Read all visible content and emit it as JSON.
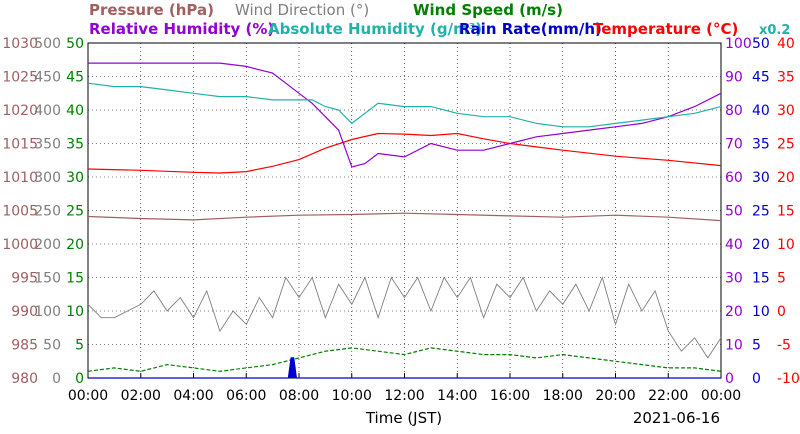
{
  "chart_data": {
    "type": "line",
    "legend": {
      "row1": [
        {
          "text": "Pressure (hPa)",
          "color": "#a0605f"
        },
        {
          "text": "Wind Direction (°)",
          "color": "#7f7f7f"
        },
        {
          "text": "Wind Speed (m/s)",
          "color": "#008000"
        }
      ],
      "row2": [
        {
          "text": "Relative Humidity (%)",
          "color": "#9400d3"
        },
        {
          "text": "Absolute Humidity (g/m³)",
          "color": "#20b2aa"
        },
        {
          "text": "Rain Rate(mm/h)",
          "color": "#0000cd"
        },
        {
          "text": "Temperature (°C)",
          "color": "#ff0000"
        },
        {
          "text": "x0.2",
          "color": "#20b2aa"
        }
      ]
    },
    "xlabel": "Time (JST)",
    "date": "2021-06-16",
    "x_ticks": [
      "00:00",
      "02:00",
      "04:00",
      "06:00",
      "08:00",
      "10:00",
      "12:00",
      "14:00",
      "16:00",
      "18:00",
      "20:00",
      "22:00",
      "00:00"
    ],
    "axes": {
      "pressure": {
        "color": "#a0605f",
        "ticks": [
          "1030",
          "1025",
          "1020",
          "1015",
          "1010",
          "1005",
          "1000",
          "995",
          "990",
          "985",
          "980"
        ],
        "ylim": [
          980,
          1030
        ]
      },
      "wind_direction": {
        "color": "#7f7f7f",
        "ticks": [
          "500",
          "450",
          "400",
          "350",
          "300",
          "250",
          "200",
          "150",
          "100",
          "50",
          "0"
        ],
        "ylim": [
          0,
          500
        ]
      },
      "wind_speed": {
        "color": "#008000",
        "ticks": [
          "50",
          "45",
          "40",
          "35",
          "30",
          "25",
          "20",
          "15",
          "10",
          "5",
          "0"
        ],
        "ylim": [
          0,
          50
        ]
      },
      "humidity": {
        "color": "#9400d3",
        "ticks": [
          "100",
          "90",
          "80",
          "70",
          "60",
          "50",
          "40",
          "30",
          "20",
          "10",
          "0"
        ],
        "ylim": [
          0,
          100
        ]
      },
      "rain": {
        "color": "#0000cd",
        "ticks": [
          "50",
          "45",
          "40",
          "35",
          "30",
          "25",
          "20",
          "15",
          "10",
          "5",
          "0"
        ],
        "ylim": [
          0,
          50
        ]
      },
      "temperature": {
        "color": "#ff0000",
        "ticks": [
          "40",
          "35",
          "30",
          "25",
          "20",
          "15",
          "10",
          "5",
          "0",
          "-5",
          "-10"
        ],
        "ylim": [
          -10,
          40
        ]
      }
    },
    "series": [
      {
        "name": "Pressure (hPa)",
        "axis": "pressure",
        "color": "#a0605f",
        "x": [
          0,
          2,
          4,
          6,
          8,
          10,
          12,
          14,
          16,
          18,
          20,
          22,
          24
        ],
        "y": [
          1004.1,
          1003.8,
          1003.6,
          1004.0,
          1004.3,
          1004.4,
          1004.6,
          1004.4,
          1004.2,
          1004.0,
          1004.3,
          1004.0,
          1003.5
        ]
      },
      {
        "name": "Temperature (°C)",
        "axis": "temperature",
        "color": "#ff0000",
        "x": [
          0,
          2,
          4,
          5,
          6,
          7,
          8,
          9,
          10,
          11,
          12,
          13,
          14,
          15,
          16,
          17,
          18,
          20,
          22,
          24
        ],
        "y": [
          21.2,
          21.0,
          20.7,
          20.6,
          20.8,
          21.6,
          22.6,
          24.3,
          25.6,
          26.5,
          26.4,
          26.2,
          26.5,
          25.7,
          25.0,
          24.5,
          24.0,
          23.1,
          22.5,
          21.7
        ]
      },
      {
        "name": "Relative Humidity (%)",
        "axis": "humidity",
        "color": "#9400d3",
        "x": [
          0,
          2,
          4,
          5,
          6,
          6.5,
          7,
          7.5,
          8,
          8.5,
          9,
          9.5,
          10,
          10.5,
          11,
          12,
          13,
          14,
          15,
          16,
          17,
          18,
          19,
          20,
          21,
          22,
          23,
          24
        ],
        "y": [
          94,
          94,
          94,
          94,
          93,
          92,
          91,
          88,
          85,
          82,
          78,
          74,
          63,
          64,
          67,
          66,
          70,
          68,
          68,
          70,
          72,
          73,
          74,
          75,
          76,
          78,
          81,
          85
        ]
      },
      {
        "name": "Absolute Humidity (g/m³)",
        "axis": "humidity",
        "color": "#20b2aa",
        "x": [
          0,
          1,
          2,
          3,
          4,
          5,
          6,
          7,
          8,
          8.5,
          9,
          9.5,
          10,
          10.5,
          11,
          12,
          13,
          14,
          15,
          16,
          17,
          18,
          19,
          20,
          21,
          22,
          23,
          24
        ],
        "y": [
          88,
          87,
          87,
          86,
          85,
          84,
          84,
          83,
          83,
          83,
          81,
          80,
          76,
          79,
          82,
          81,
          81,
          79,
          78,
          78,
          76,
          75,
          75,
          76,
          77,
          78,
          79,
          81
        ]
      },
      {
        "name": "Wind Direction (°)",
        "axis": "wind_direction",
        "color": "#7f7f7f",
        "x": [
          0,
          0.5,
          1,
          1.5,
          2,
          2.5,
          3,
          3.5,
          4,
          4.5,
          5,
          5.5,
          6,
          6.5,
          7,
          7.5,
          8,
          8.5,
          9,
          9.5,
          10,
          10.5,
          11,
          11.5,
          12,
          12.5,
          13,
          13.5,
          14,
          14.5,
          15,
          15.5,
          16,
          16.5,
          17,
          17.5,
          18,
          18.5,
          19,
          19.5,
          20,
          20.5,
          21,
          21.5,
          22,
          22.5,
          23,
          23.5,
          24
        ],
        "y": [
          110,
          90,
          90,
          100,
          110,
          130,
          100,
          120,
          90,
          130,
          70,
          100,
          80,
          120,
          90,
          150,
          120,
          150,
          90,
          140,
          110,
          150,
          90,
          150,
          120,
          150,
          100,
          150,
          120,
          150,
          90,
          140,
          120,
          150,
          100,
          130,
          110,
          140,
          100,
          150,
          80,
          140,
          100,
          130,
          70,
          40,
          60,
          30,
          60
        ]
      },
      {
        "name": "Wind Speed (m/s)",
        "axis": "wind_speed",
        "color": "#008000",
        "x": [
          0,
          1,
          2,
          3,
          4,
          5,
          6,
          7,
          7.5,
          8,
          9,
          10,
          11,
          12,
          13,
          14,
          15,
          16,
          17,
          18,
          19,
          20,
          21,
          22,
          23,
          24
        ],
        "y": [
          1,
          1.5,
          1,
          2,
          1.5,
          1,
          1.5,
          2,
          2.5,
          3,
          4,
          4.5,
          4,
          3.5,
          4.5,
          4,
          3.5,
          3.5,
          3,
          3.5,
          3,
          2.5,
          2,
          1.5,
          1.5,
          1
        ]
      },
      {
        "name": "Rain Rate(mm/h)",
        "axis": "rain",
        "color": "#0000cd",
        "x": [
          0,
          7.6,
          7.7,
          7.8,
          7.9,
          24
        ],
        "y": [
          0,
          0,
          3,
          3,
          0,
          0
        ]
      }
    ],
    "xlim": [
      0,
      24
    ],
    "grid": true
  }
}
